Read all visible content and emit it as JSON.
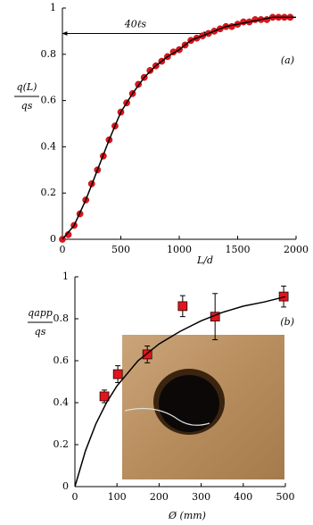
{
  "chart_data": [
    {
      "type": "scatter",
      "panel_label": "(a)",
      "xlabel": "L/d",
      "ylabel": {
        "numerator": "q(L)",
        "denominator": "qs"
      },
      "xlim": [
        0,
        2000
      ],
      "xticks": [
        0,
        500,
        1000,
        1500,
        2000
      ],
      "ylim": [
        0,
        1
      ],
      "yticks": [
        0,
        0.2,
        0.4,
        0.6,
        0.8,
        1
      ],
      "annotation": {
        "text": "40ℓs",
        "x": [
          0,
          1250
        ],
        "y": 0.89
      },
      "series": [
        {
          "marker": "circle",
          "color": "#e3141c",
          "x": [
            0,
            50,
            100,
            150,
            200,
            250,
            300,
            350,
            400,
            450,
            500,
            550,
            600,
            650,
            700,
            750,
            800,
            850,
            900,
            950,
            1000,
            1050,
            1100,
            1150,
            1200,
            1250,
            1300,
            1350,
            1400,
            1450,
            1500,
            1550,
            1600,
            1650,
            1700,
            1750,
            1800,
            1850,
            1900,
            1950
          ],
          "values": [
            0,
            0.02,
            0.06,
            0.11,
            0.17,
            0.24,
            0.3,
            0.36,
            0.43,
            0.49,
            0.55,
            0.59,
            0.63,
            0.67,
            0.7,
            0.73,
            0.75,
            0.77,
            0.79,
            0.81,
            0.82,
            0.84,
            0.86,
            0.87,
            0.88,
            0.89,
            0.9,
            0.91,
            0.92,
            0.92,
            0.93,
            0.94,
            0.94,
            0.95,
            0.95,
            0.95,
            0.96,
            0.96,
            0.96,
            0.96
          ]
        },
        {
          "marker": "line",
          "color": "#000000",
          "x": [
            0,
            100,
            200,
            300,
            400,
            500,
            600,
            700,
            800,
            900,
            1000,
            1100,
            1200,
            1300,
            1400,
            1500,
            1600,
            1700,
            1800,
            1900,
            2000
          ],
          "values": [
            0,
            0.06,
            0.17,
            0.3,
            0.43,
            0.55,
            0.63,
            0.7,
            0.75,
            0.79,
            0.82,
            0.86,
            0.88,
            0.9,
            0.92,
            0.93,
            0.94,
            0.95,
            0.96,
            0.96,
            0.96
          ]
        }
      ]
    },
    {
      "type": "scatter",
      "panel_label": "(b)",
      "xlabel": "Ø (mm)",
      "ylabel": {
        "numerator": "qapp",
        "denominator": "qs"
      },
      "xlim": [
        0,
        500
      ],
      "xticks": [
        0,
        100,
        200,
        300,
        400,
        500
      ],
      "ylim": [
        0,
        1
      ],
      "yticks": [
        0,
        0.2,
        0.4,
        0.6,
        0.8,
        1
      ],
      "series": [
        {
          "marker": "square",
          "color": "#e3141c",
          "x": [
            70,
            102,
            172,
            256,
            333,
            496
          ],
          "values": [
            0.43,
            0.536,
            0.63,
            0.86,
            0.81,
            0.906
          ],
          "errors": [
            0.03,
            0.04,
            0.04,
            0.05,
            0.11,
            0.05
          ]
        },
        {
          "marker": "line",
          "color": "#000000",
          "x": [
            0,
            25,
            50,
            75,
            100,
            150,
            200,
            250,
            300,
            350,
            400,
            450,
            500
          ],
          "values": [
            0,
            0.17,
            0.3,
            0.4,
            0.48,
            0.6,
            0.68,
            0.74,
            0.79,
            0.83,
            0.86,
            0.88,
            0.905
          ]
        }
      ]
    }
  ]
}
